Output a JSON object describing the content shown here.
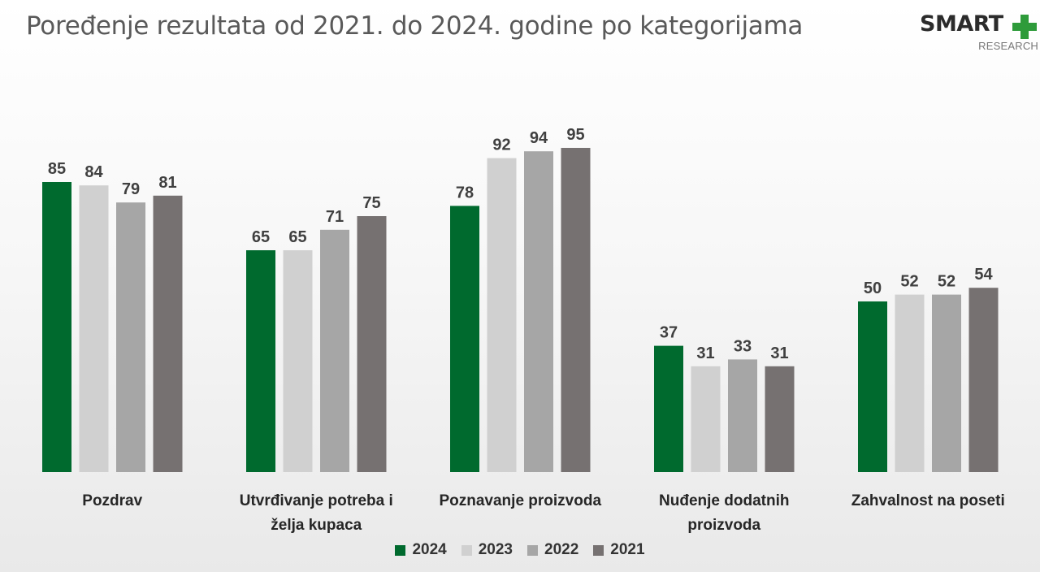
{
  "title": "Poređenje rezultata od 2021. do 2024. godine po kategorijama",
  "logo": {
    "brand": "SMART",
    "sub": "RESEARCH",
    "plus_color": "#2E9B3A"
  },
  "chart_data": {
    "type": "bar",
    "title": "Poređenje rezultata od 2021. do 2024. godine po kategorijama",
    "categories": [
      [
        "Pozdrav"
      ],
      [
        "Utvrđivanje potreba i",
        "želja kupaca"
      ],
      [
        "Poznavanje proizvoda"
      ],
      [
        "Nuđenje dodatnih",
        "proizvoda"
      ],
      [
        "Zahvalnost na poseti"
      ]
    ],
    "series": [
      {
        "name": "2024",
        "color": "#006A2E",
        "values": [
          85,
          65,
          78,
          37,
          50
        ]
      },
      {
        "name": "2023",
        "color": "#D0D0D0",
        "values": [
          84,
          65,
          92,
          31,
          52
        ]
      },
      {
        "name": "2022",
        "color": "#A6A6A6",
        "values": [
          79,
          71,
          94,
          33,
          52
        ]
      },
      {
        "name": "2021",
        "color": "#767171",
        "values": [
          81,
          75,
          95,
          31,
          54
        ]
      }
    ],
    "ylim": [
      0,
      100
    ],
    "grid": false,
    "legend": "bottom",
    "data_labels": true
  }
}
